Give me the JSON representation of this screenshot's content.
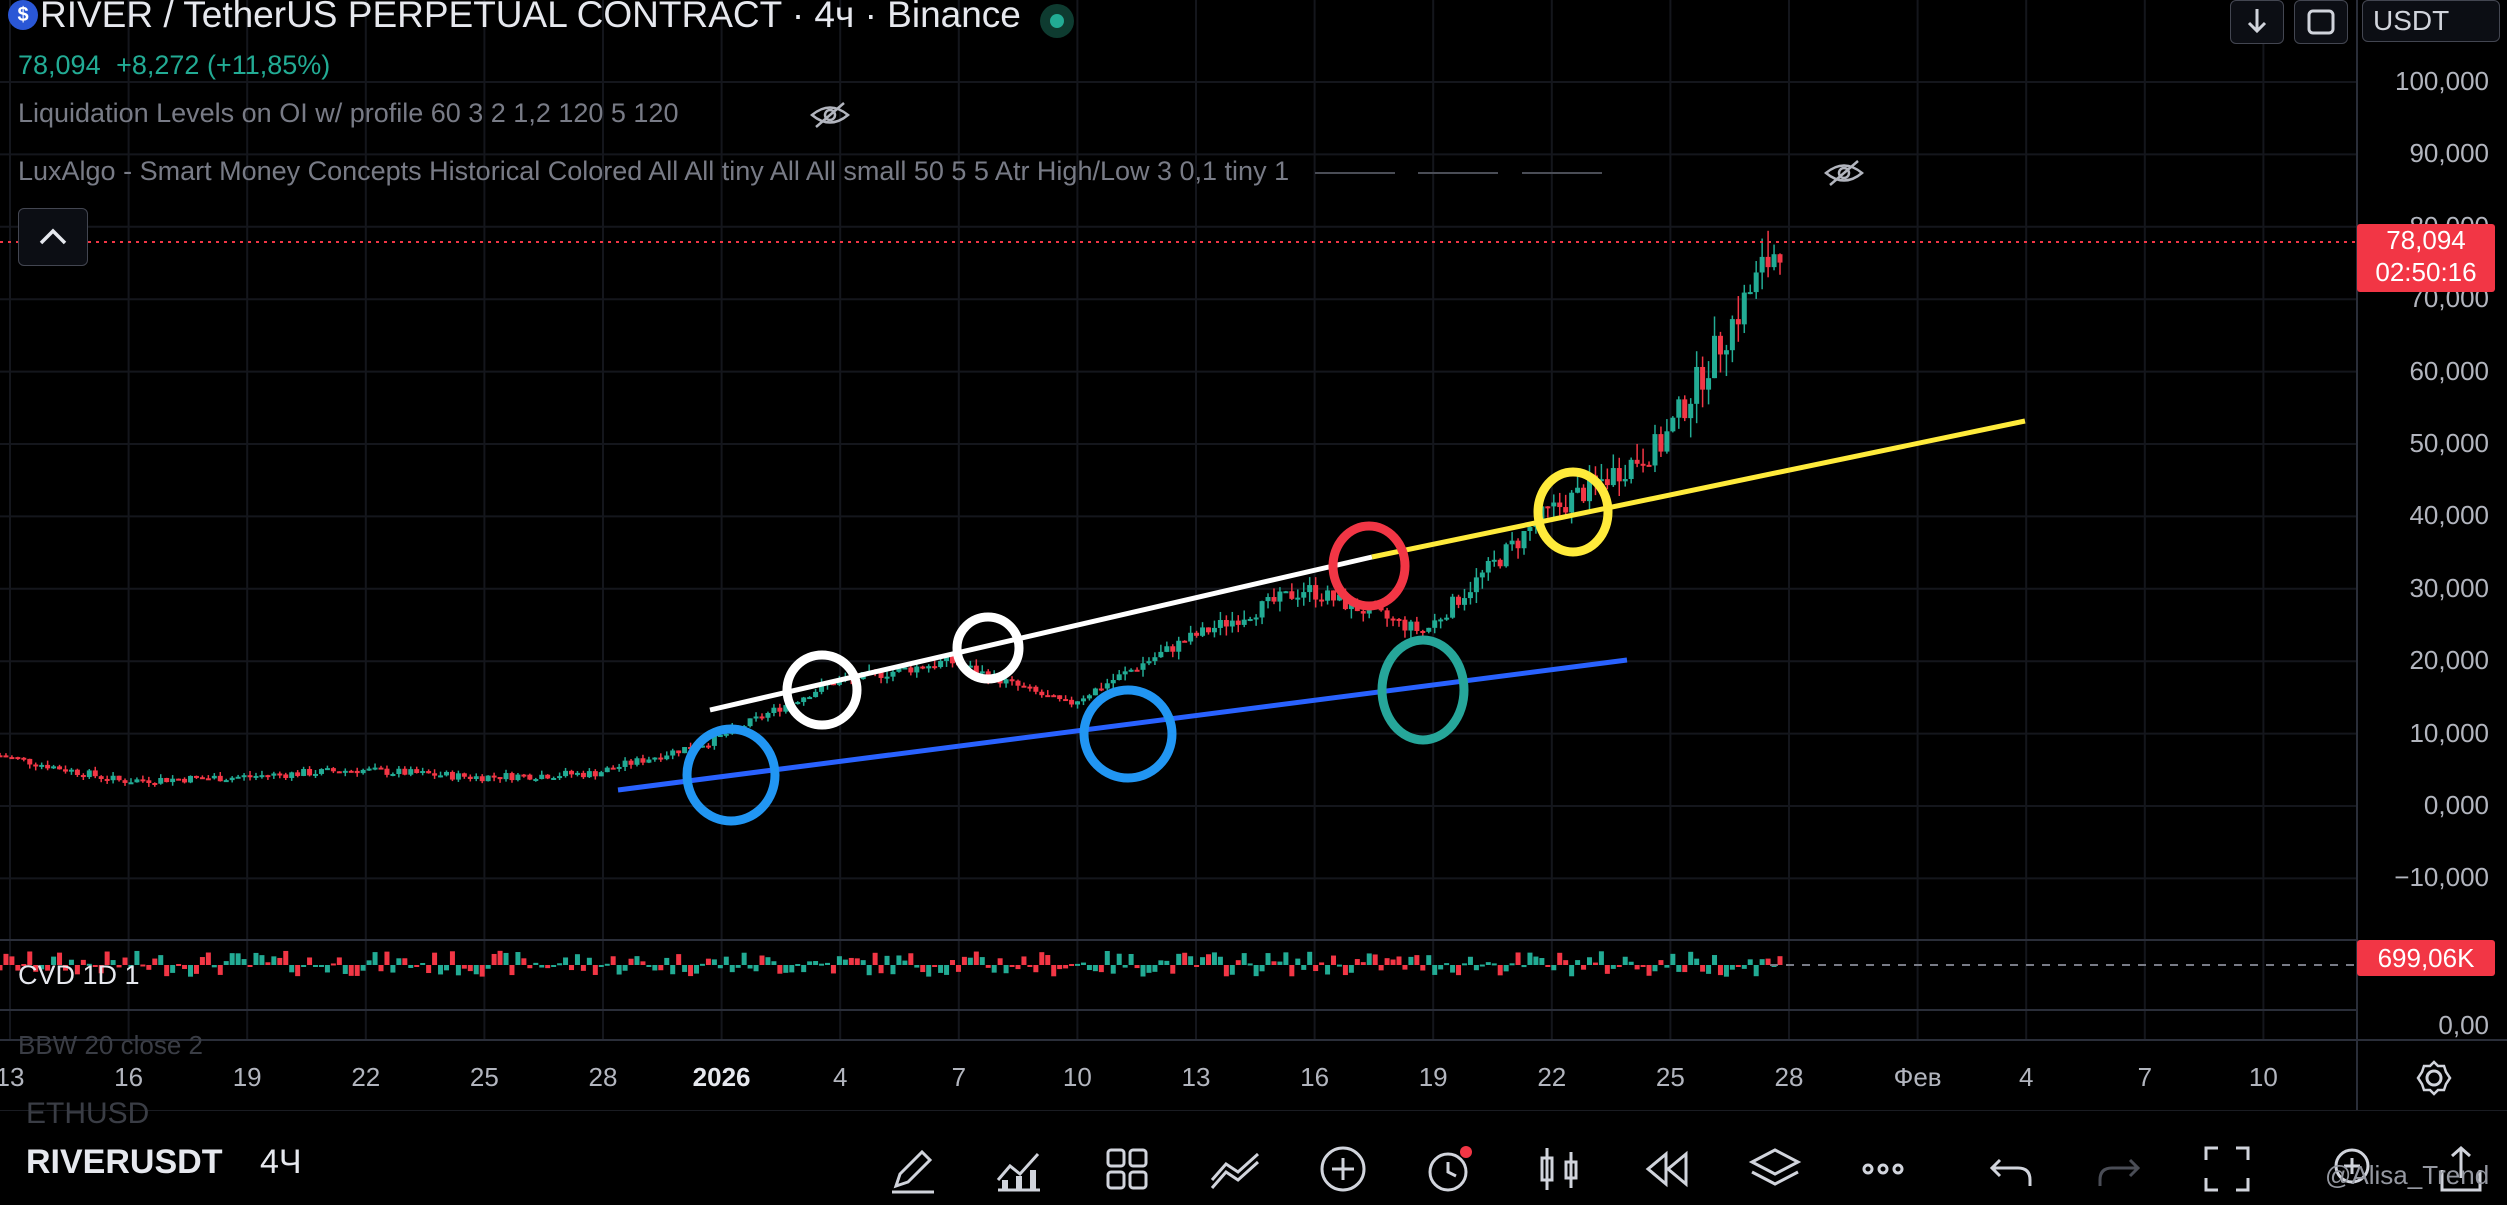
{
  "header": {
    "title": "RIVER / TetherUS PERPETUAL CONTRACT · 4ч · Binance",
    "last_price": "78,094",
    "change": "+8,272 (+11,85%)",
    "currency": "USDT"
  },
  "indicators": [
    {
      "label": "Liquidation Levels on OI w/ profile 60 3 2 1,2 120 5 120"
    },
    {
      "label": "LuxAlgo - Smart Money Concepts Historical Colored All All tiny All All small 50 5 5 Atr High/Low 3 0,1 tiny 1"
    }
  ],
  "price_axis": {
    "ticks": [
      "100,000",
      "90,000",
      "80,000",
      "70,000",
      "60,000",
      "50,000",
      "40,000",
      "30,000",
      "20,000",
      "10,000",
      "0,000",
      "−10,000"
    ],
    "last_price_tag": "78,094",
    "countdown": "02:50:16"
  },
  "time_axis": {
    "ticks": [
      "13",
      "16",
      "19",
      "22",
      "25",
      "28",
      "2026",
      "4",
      "7",
      "10",
      "13",
      "16",
      "19",
      "22",
      "25",
      "28",
      "Фев",
      "4",
      "7",
      "10"
    ]
  },
  "cvd": {
    "label": "CVD 1D 1",
    "value_tag": "699,06K",
    "zero_label": "0,00"
  },
  "ghost_labels": {
    "pane": "BBW 20 close 2",
    "compare": "ETHUSD"
  },
  "bottom_bar": {
    "symbol": "RIVERUSDT",
    "timeframe": "4Ч",
    "watermark": "@Alisa_Trend"
  },
  "colors": {
    "up": "#22ab94",
    "down": "#f23645",
    "trend_white": "#ffffff",
    "trend_blue": "#2962ff",
    "trend_yellow": "#ffeb3b",
    "circle_blue": "#2196f3",
    "circle_red": "#f23645",
    "circle_green": "#26a69a",
    "circle_yellow": "#ffeb3b"
  },
  "chart_data": {
    "type": "line",
    "title": "RIVER / TetherUS PERPETUAL CONTRACT · 4ч · Binance",
    "ylim": [
      -15000,
      105000
    ],
    "x": [
      "13",
      "16",
      "19",
      "22",
      "25",
      "28",
      "2026",
      "4",
      "7",
      "10",
      "13",
      "16",
      "19",
      "22",
      "25",
      "28"
    ],
    "series": [
      {
        "values": [
          7000,
          3500,
          4000,
          5000,
          4000,
          4500,
          9000,
          17000,
          20000,
          14000,
          23000,
          30000,
          24000,
          40000,
          50000,
          78094
        ]
      }
    ]
  }
}
